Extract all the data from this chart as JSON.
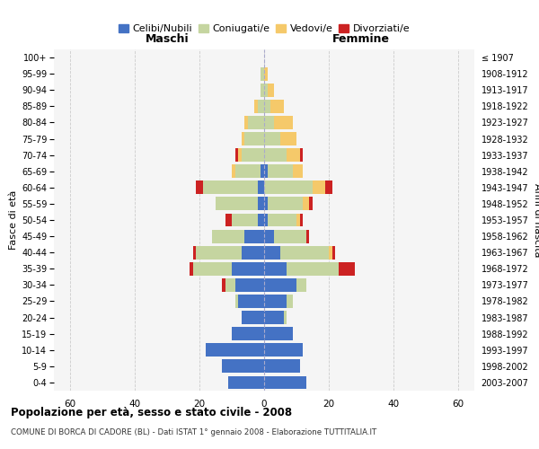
{
  "age_groups": [
    "0-4",
    "5-9",
    "10-14",
    "15-19",
    "20-24",
    "25-29",
    "30-34",
    "35-39",
    "40-44",
    "45-49",
    "50-54",
    "55-59",
    "60-64",
    "65-69",
    "70-74",
    "75-79",
    "80-84",
    "85-89",
    "90-94",
    "95-99",
    "100+"
  ],
  "birth_years": [
    "2003-2007",
    "1998-2002",
    "1993-1997",
    "1988-1992",
    "1983-1987",
    "1978-1982",
    "1973-1977",
    "1968-1972",
    "1963-1967",
    "1958-1962",
    "1953-1957",
    "1948-1952",
    "1943-1947",
    "1938-1942",
    "1933-1937",
    "1928-1932",
    "1923-1927",
    "1918-1922",
    "1913-1917",
    "1908-1912",
    "≤ 1907"
  ],
  "colors": {
    "celibi": "#4472C4",
    "coniugati": "#C5D5A0",
    "vedovi": "#F5C96A",
    "divorziati": "#CC2222"
  },
  "legend_labels": [
    "Celibi/Nubili",
    "Coniugati/e",
    "Vedovi/e",
    "Divorziati/e"
  ],
  "maschi": {
    "celibi": [
      11,
      13,
      18,
      10,
      7,
      8,
      9,
      10,
      7,
      6,
      2,
      2,
      2,
      1,
      0,
      0,
      0,
      0,
      0,
      0,
      0
    ],
    "coniugati": [
      0,
      0,
      0,
      0,
      0,
      1,
      3,
      12,
      14,
      10,
      8,
      13,
      17,
      8,
      7,
      6,
      5,
      2,
      1,
      1,
      0
    ],
    "vedovi": [
      0,
      0,
      0,
      0,
      0,
      0,
      0,
      0,
      0,
      0,
      0,
      0,
      0,
      1,
      1,
      1,
      1,
      1,
      0,
      0,
      0
    ],
    "divorziati": [
      0,
      0,
      0,
      0,
      0,
      0,
      1,
      1,
      1,
      0,
      2,
      0,
      2,
      0,
      1,
      0,
      0,
      0,
      0,
      0,
      0
    ]
  },
  "femmine": {
    "nubili": [
      13,
      11,
      12,
      9,
      6,
      7,
      10,
      7,
      5,
      3,
      1,
      1,
      0,
      1,
      0,
      0,
      0,
      0,
      0,
      0,
      0
    ],
    "coniugate": [
      0,
      0,
      0,
      0,
      1,
      2,
      3,
      16,
      15,
      10,
      9,
      11,
      15,
      8,
      7,
      5,
      3,
      2,
      1,
      0,
      0
    ],
    "vedove": [
      0,
      0,
      0,
      0,
      0,
      0,
      0,
      0,
      1,
      0,
      1,
      2,
      4,
      3,
      4,
      5,
      6,
      4,
      2,
      1,
      0
    ],
    "divorziate": [
      0,
      0,
      0,
      0,
      0,
      0,
      0,
      5,
      1,
      1,
      1,
      1,
      2,
      0,
      1,
      0,
      0,
      0,
      0,
      0,
      0
    ]
  },
  "xlim": 65,
  "title": "Popolazione per età, sesso e stato civile - 2008",
  "subtitle": "COMUNE DI BORCA DI CADORE (BL) - Dati ISTAT 1° gennaio 2008 - Elaborazione TUTTITALIA.IT",
  "xlabel_left": "Maschi",
  "xlabel_right": "Femmine",
  "ylabel_left": "Fasce di età",
  "ylabel_right": "Anni di nascita",
  "background": "#FFFFFF",
  "grid_color": "#CCCCCC",
  "plot_bg": "#F5F5F5"
}
